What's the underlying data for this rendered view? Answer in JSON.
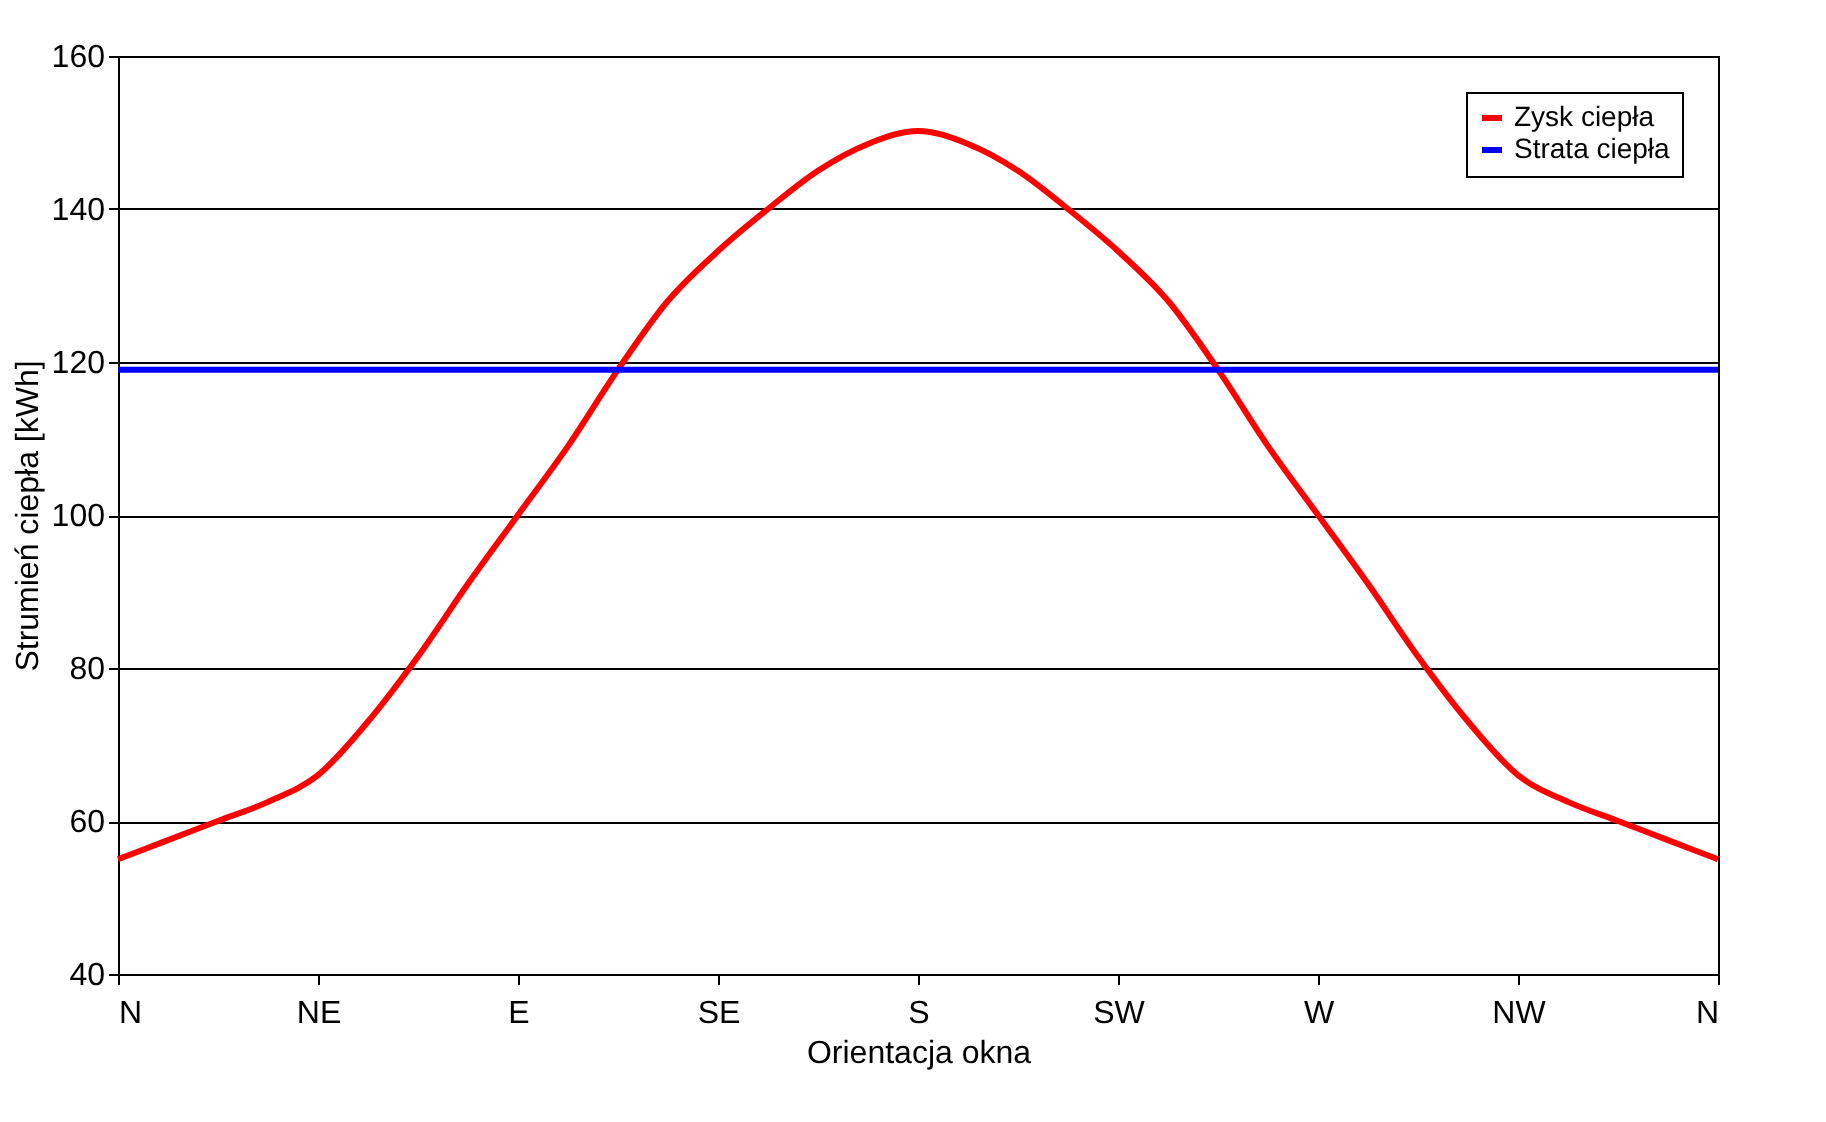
{
  "chart_data": {
    "type": "line",
    "xlabel": "Orientacja okna",
    "ylabel": "Strumień ciepła [kWh]",
    "categories": [
      "N",
      null,
      null,
      null,
      "NE",
      null,
      null,
      null,
      "E",
      null,
      null,
      null,
      "SE",
      null,
      null,
      null,
      "S",
      null,
      null,
      null,
      "SW",
      null,
      null,
      null,
      "W",
      null,
      null,
      null,
      "NW",
      null,
      null,
      null,
      "N"
    ],
    "ylim": [
      40,
      160
    ],
    "yticks": [
      40,
      60,
      80,
      100,
      120,
      140,
      160
    ],
    "grid": "y",
    "legend": "top right",
    "marker": "none",
    "line_style": "solid",
    "series": [
      {
        "name": "Zysk ciepła",
        "color": "#ff0000",
        "values": [
          55,
          57.5,
          60,
          62.5,
          66,
          73,
          81.5,
          91,
          100,
          109,
          119,
          128,
          134.5,
          140,
          145,
          148.5,
          150.2,
          148.5,
          145,
          140,
          134.5,
          128,
          119,
          109,
          100,
          91,
          81.5,
          73,
          66,
          62.5,
          60,
          57.5,
          55
        ]
      },
      {
        "name": "Strata ciepła",
        "color": "#0000ff",
        "values": [
          119,
          119,
          119,
          119,
          119,
          119,
          119,
          119,
          119,
          119,
          119,
          119,
          119,
          119,
          119,
          119,
          119,
          119,
          119,
          119,
          119,
          119,
          119,
          119,
          119,
          119,
          119,
          119,
          119,
          119,
          119,
          119,
          119
        ]
      }
    ]
  }
}
